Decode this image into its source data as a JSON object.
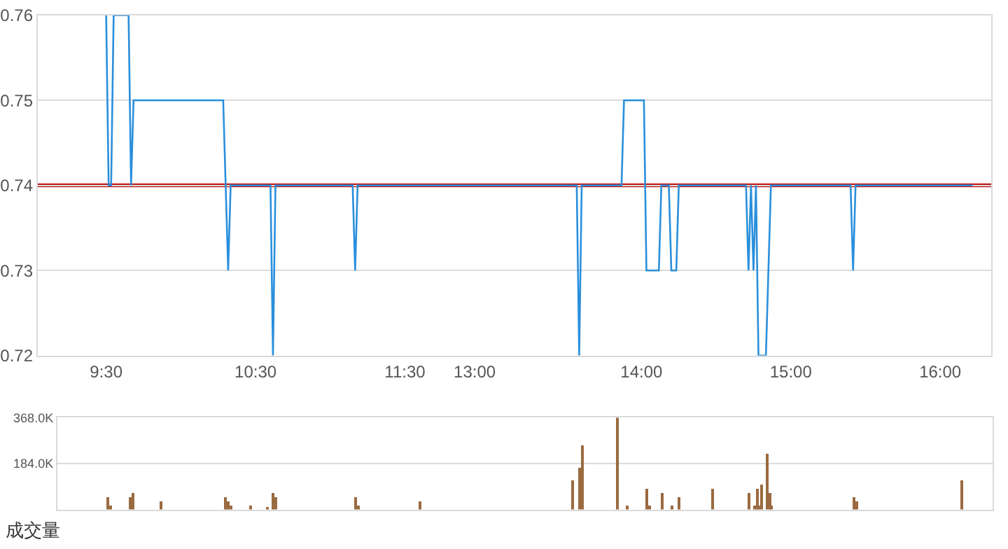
{
  "chart_data": [
    {
      "type": "line",
      "categories": [
        null,
        null,
        null,
        null,
        null,
        null,
        null,
        null,
        null,
        null,
        null,
        null,
        null,
        null,
        null,
        null,
        null,
        null,
        null,
        null,
        null,
        null,
        null,
        null,
        null,
        null,
        null,
        "9:30",
        null,
        null,
        null,
        null,
        null,
        null,
        null,
        null,
        null,
        null,
        null,
        null,
        null,
        null,
        null,
        null,
        null,
        null,
        null,
        null,
        null,
        null,
        null,
        null,
        null,
        null,
        null,
        null,
        null,
        null,
        null,
        null,
        null,
        null,
        null,
        null,
        null,
        null,
        null,
        null,
        null,
        null,
        null,
        null,
        null,
        null,
        null,
        null,
        null,
        null,
        null,
        null,
        null,
        null,
        null,
        null,
        null,
        null,
        null,
        "10:30",
        null,
        null,
        null,
        null,
        null,
        null,
        null,
        null,
        null,
        null,
        null,
        null,
        null,
        null,
        null,
        null,
        null,
        null,
        null,
        null,
        null,
        null,
        null,
        null,
        null,
        null,
        null,
        null,
        null,
        null,
        null,
        null,
        null,
        null,
        null,
        null,
        null,
        null,
        null,
        null,
        null,
        null,
        null,
        null,
        null,
        null,
        null,
        null,
        null,
        null,
        null,
        null,
        null,
        null,
        null,
        null,
        null,
        null,
        null,
        "11:30",
        null,
        null,
        null,
        null,
        null,
        null,
        null,
        null,
        null,
        null,
        null,
        null,
        null,
        null,
        null,
        null,
        null,
        null,
        null,
        null,
        null,
        null,
        null,
        null,
        null,
        null,
        null,
        "13:00",
        null,
        null,
        null,
        null,
        null,
        null,
        null,
        null,
        null,
        null,
        null,
        null,
        null,
        null,
        null,
        null,
        null,
        null,
        null,
        null,
        null,
        null,
        null,
        null,
        null,
        null,
        null,
        null,
        null,
        null,
        null,
        null,
        null,
        null,
        null,
        null,
        null,
        null,
        null,
        null,
        null,
        null,
        null,
        null,
        null,
        null,
        null,
        null,
        null,
        null,
        null,
        null,
        null,
        null,
        null,
        null,
        null,
        null,
        null,
        null,
        null,
        null,
        null,
        null,
        null,
        null,
        "14:00",
        null,
        null,
        null,
        null,
        null,
        null,
        null,
        null,
        null,
        null,
        null,
        null,
        null,
        null,
        null,
        null,
        null,
        null,
        null,
        null,
        null,
        null,
        null,
        null,
        null,
        null,
        null,
        null,
        null,
        null,
        null,
        null,
        null,
        null,
        null,
        null,
        null,
        null,
        null,
        null,
        null,
        null,
        null,
        null,
        null,
        null,
        null,
        null,
        null,
        null,
        null,
        null,
        null,
        null,
        null,
        null,
        null,
        null,
        null,
        "15:00",
        null,
        null,
        null,
        null,
        null,
        null,
        null,
        null,
        null,
        null,
        null,
        null,
        null,
        null,
        null,
        null,
        null,
        null,
        null,
        null,
        null,
        null,
        null,
        null,
        null,
        null,
        null,
        null,
        null,
        null,
        null,
        null,
        null,
        null,
        null,
        null,
        null,
        null,
        null,
        null,
        null,
        null,
        null,
        null,
        null,
        null,
        null,
        null,
        null,
        null,
        null,
        null,
        null,
        null,
        null,
        null,
        null,
        null,
        null,
        "16:00",
        null,
        null,
        null,
        null,
        null,
        null,
        null,
        null,
        null,
        null,
        null,
        null,
        null,
        null,
        null,
        null,
        null,
        null,
        null,
        null
      ],
      "series": [
        {
          "color": "#2a8fdc",
          "values": [
            null,
            null,
            null,
            null,
            null,
            null,
            null,
            null,
            null,
            null,
            null,
            null,
            null,
            null,
            null,
            null,
            null,
            null,
            null,
            null,
            null,
            null,
            null,
            null,
            null,
            null,
            null,
            0.76,
            0.74,
            0.74,
            0.76,
            0.76,
            0.76,
            0.76,
            0.76,
            0.76,
            0.76,
            0.74,
            0.75,
            0.75,
            0.75,
            0.75,
            0.75,
            0.75,
            0.75,
            0.75,
            0.75,
            0.75,
            0.75,
            0.75,
            0.75,
            0.75,
            0.75,
            0.75,
            0.75,
            0.75,
            0.75,
            0.75,
            0.75,
            0.75,
            0.75,
            0.75,
            0.75,
            0.75,
            0.75,
            0.75,
            0.75,
            0.75,
            0.75,
            0.75,
            0.75,
            0.75,
            0.75,
            0.75,
            0.75,
            0.74,
            0.73,
            0.74,
            0.74,
            0.74,
            0.74,
            0.74,
            0.74,
            0.74,
            0.74,
            0.74,
            0.74,
            0.74,
            0.74,
            0.74,
            0.74,
            0.74,
            0.74,
            0.74,
            0.72,
            0.74,
            0.74,
            0.74,
            0.74,
            0.74,
            0.74,
            0.74,
            0.74,
            0.74,
            0.74,
            0.74,
            0.74,
            0.74,
            0.74,
            0.74,
            0.74,
            0.74,
            0.74,
            0.74,
            0.74,
            0.74,
            0.74,
            0.74,
            0.74,
            0.74,
            0.74,
            0.74,
            0.74,
            0.74,
            0.74,
            0.74,
            0.74,
            0.73,
            0.74,
            0.74,
            0.74,
            0.74,
            0.74,
            0.74,
            0.74,
            0.74,
            0.74,
            0.74,
            0.74,
            0.74,
            0.74,
            0.74,
            0.74,
            0.74,
            0.74,
            0.74,
            0.74,
            0.74,
            0.74,
            0.74,
            0.74,
            0.74,
            0.74,
            0.74,
            0.74,
            0.74,
            0.74,
            0.74,
            0.74,
            0.74,
            0.74,
            0.74,
            0.74,
            0.74,
            0.74,
            0.74,
            0.74,
            0.74,
            0.74,
            0.74,
            0.74,
            0.74,
            0.74,
            0.74,
            0.74,
            0.74,
            0.74,
            0.74,
            0.74,
            0.74,
            0.74,
            0.74,
            0.74,
            0.74,
            0.74,
            0.74,
            0.74,
            0.74,
            0.74,
            0.74,
            0.74,
            0.74,
            0.74,
            0.74,
            0.74,
            0.74,
            0.74,
            0.74,
            0.74,
            0.74,
            0.74,
            0.74,
            0.74,
            0.74,
            0.74,
            0.74,
            0.74,
            0.74,
            0.74,
            0.74,
            0.74,
            0.74,
            0.74,
            0.74,
            0.74,
            0.74,
            0.74,
            0.72,
            0.74,
            0.74,
            0.74,
            0.74,
            0.74,
            0.74,
            0.74,
            0.74,
            0.74,
            0.74,
            0.74,
            0.74,
            0.74,
            0.74,
            0.74,
            0.74,
            0.74,
            0.75,
            0.75,
            0.75,
            0.75,
            0.75,
            0.75,
            0.75,
            0.75,
            0.75,
            0.73,
            0.73,
            0.73,
            0.73,
            0.73,
            0.73,
            0.74,
            0.74,
            0.74,
            0.74,
            0.73,
            0.73,
            0.73,
            0.74,
            0.74,
            0.74,
            0.74,
            0.74,
            0.74,
            0.74,
            0.74,
            0.74,
            0.74,
            0.74,
            0.74,
            0.74,
            0.74,
            0.74,
            0.74,
            0.74,
            0.74,
            0.74,
            0.74,
            0.74,
            0.74,
            0.74,
            0.74,
            0.74,
            0.74,
            0.74,
            0.74,
            0.73,
            0.74,
            0.73,
            0.74,
            0.72,
            0.72,
            0.72,
            0.72,
            0.73,
            0.74,
            0.74,
            0.74,
            0.74,
            0.74,
            0.74,
            0.74,
            0.74,
            0.74,
            0.74,
            0.74,
            0.74,
            0.74,
            0.74,
            0.74,
            0.74,
            0.74,
            0.74,
            0.74,
            0.74,
            0.74,
            0.74,
            0.74,
            0.74,
            0.74,
            0.74,
            0.74,
            0.74,
            0.74,
            0.74,
            0.74,
            0.74,
            0.74,
            0.73,
            0.74,
            0.74,
            0.74,
            0.74,
            0.74,
            0.74,
            0.74,
            0.74,
            0.74,
            0.74,
            0.74,
            0.74,
            0.74,
            0.74,
            0.74,
            0.74,
            0.74,
            0.74,
            0.74,
            0.74,
            0.74,
            0.74,
            0.74,
            0.74,
            0.74,
            0.74,
            0.74,
            0.74,
            0.74,
            0.74,
            0.74,
            0.74,
            0.74,
            0.74,
            0.74,
            0.74,
            0.74,
            0.74,
            0.74,
            0.74,
            0.74,
            0.74,
            0.74,
            0.74,
            0.74,
            0.74,
            0.74,
            0.74,
            null,
            null,
            null,
            null,
            null,
            null,
            null
          ]
        }
      ],
      "ylim": [
        0.72,
        0.76
      ],
      "yticks": [
        0.72,
        0.73,
        0.74,
        0.75,
        0.76
      ],
      "ref_lines": [
        {
          "axis": "y",
          "value": 0.74,
          "color": "#c01010"
        }
      ],
      "grid": "y",
      "marker": "none",
      "line_style": "solid"
    },
    {
      "type": "bar",
      "xlabel": "成交量",
      "categories": [
        null,
        null,
        null,
        null,
        null,
        null,
        null,
        null,
        null,
        null,
        null,
        null,
        null,
        null,
        null,
        null,
        null,
        null,
        null,
        null,
        null,
        null,
        null,
        null,
        null,
        null,
        null,
        null,
        null,
        null,
        null,
        null,
        null,
        null,
        null,
        null,
        null,
        null,
        null,
        null,
        null,
        null,
        null,
        null,
        null,
        null,
        null,
        null,
        null,
        null,
        null,
        null,
        null,
        null,
        null,
        null,
        null,
        null,
        null,
        null,
        null,
        null,
        null,
        null,
        null,
        null,
        null,
        null,
        null,
        null,
        null,
        null,
        null,
        null,
        null,
        null,
        null,
        null,
        null,
        null,
        null,
        null,
        null,
        null,
        null,
        null,
        null,
        null,
        null,
        null,
        null,
        null,
        null,
        null,
        null,
        null,
        null,
        null,
        null,
        null,
        null,
        null,
        null,
        null,
        null,
        null,
        null,
        null,
        null,
        null,
        null,
        null,
        null,
        null,
        null,
        null,
        null,
        null,
        null,
        null,
        null,
        null,
        null,
        null,
        null,
        null,
        null,
        null,
        null,
        null,
        null,
        null,
        null,
        null,
        null,
        null,
        null,
        null,
        null,
        null,
        null,
        null,
        null,
        null,
        null,
        null,
        null,
        null,
        null,
        null,
        null,
        null,
        null,
        null,
        null,
        null,
        null,
        null,
        null,
        null,
        null,
        null,
        null,
        null,
        null,
        null,
        null,
        null,
        null,
        null,
        null,
        null,
        null,
        null,
        null,
        null,
        null,
        null,
        null,
        null,
        null,
        null,
        null,
        null,
        null,
        null,
        null,
        null,
        null,
        null,
        null,
        null,
        null,
        null,
        null,
        null,
        null,
        null,
        null,
        null,
        null,
        null,
        null,
        null,
        null,
        null,
        null,
        null,
        null,
        null,
        null,
        null,
        null,
        null,
        null,
        null,
        null,
        null,
        null,
        null,
        null,
        null,
        null,
        null,
        null,
        null,
        null,
        null,
        null,
        null,
        null,
        null,
        null,
        null,
        null,
        null,
        null,
        null,
        null,
        null,
        null,
        null,
        null,
        null,
        null,
        null,
        null,
        null,
        null,
        null,
        null,
        null,
        null,
        null,
        null,
        null,
        null,
        null,
        null,
        null,
        null,
        null,
        null,
        null,
        null,
        null,
        null,
        null,
        null,
        null,
        null,
        null,
        null,
        null,
        null,
        null,
        null,
        null,
        null,
        null,
        null,
        null,
        null,
        null,
        null,
        null,
        null,
        null,
        null,
        null,
        null,
        null,
        null,
        null,
        null,
        null,
        null,
        null,
        null,
        null,
        null,
        null,
        null,
        null,
        null,
        null,
        null,
        null,
        null,
        null,
        null,
        null,
        null,
        null,
        null,
        null,
        null,
        null,
        null,
        null,
        null,
        null,
        null,
        null,
        null,
        null,
        null,
        null,
        null,
        null,
        null,
        null,
        null,
        null,
        null,
        null,
        null,
        null,
        null,
        null,
        null,
        null,
        null,
        null,
        null,
        null,
        null,
        null,
        null,
        null,
        null,
        null,
        null,
        null,
        null,
        null,
        null,
        null,
        null,
        null,
        null,
        null,
        null,
        null,
        null,
        null,
        null,
        null,
        null,
        null,
        null,
        null,
        null,
        null,
        null
      ],
      "series": [
        {
          "color": "#9a6a40",
          "values": [
            null,
            null,
            null,
            null,
            null,
            null,
            null,
            null,
            null,
            null,
            null,
            null,
            null,
            null,
            null,
            null,
            null,
            null,
            null,
            null,
            49000,
            16000,
            null,
            null,
            null,
            null,
            null,
            null,
            null,
            49000,
            65000,
            null,
            null,
            null,
            null,
            null,
            null,
            null,
            null,
            null,
            null,
            32000,
            null,
            null,
            null,
            null,
            null,
            null,
            null,
            null,
            null,
            null,
            null,
            null,
            null,
            null,
            null,
            null,
            null,
            null,
            null,
            null,
            null,
            null,
            null,
            null,
            null,
            49000,
            32000,
            16000,
            null,
            null,
            null,
            null,
            null,
            null,
            null,
            16000,
            null,
            null,
            null,
            null,
            null,
            null,
            5000,
            null,
            65000,
            49000,
            null,
            null,
            null,
            null,
            null,
            null,
            null,
            null,
            null,
            null,
            null,
            null,
            null,
            null,
            null,
            null,
            null,
            null,
            null,
            null,
            null,
            null,
            null,
            null,
            null,
            null,
            null,
            null,
            null,
            null,
            null,
            49000,
            16000,
            null,
            null,
            null,
            null,
            null,
            null,
            null,
            null,
            null,
            null,
            null,
            null,
            null,
            null,
            null,
            null,
            null,
            null,
            null,
            null,
            null,
            null,
            null,
            null,
            32000,
            null,
            null,
            null,
            null,
            null,
            null,
            null,
            null,
            null,
            null,
            null,
            null,
            null,
            null,
            null,
            null,
            null,
            null,
            null,
            null,
            null,
            null,
            null,
            null,
            null,
            null,
            null,
            null,
            null,
            null,
            null,
            null,
            null,
            null,
            null,
            null,
            null,
            null,
            null,
            null,
            null,
            null,
            null,
            null,
            null,
            null,
            null,
            null,
            null,
            null,
            null,
            null,
            null,
            null,
            null,
            null,
            null,
            null,
            null,
            null,
            115000,
            null,
            null,
            164000,
            257000,
            null,
            null,
            null,
            null,
            null,
            null,
            null,
            null,
            null,
            null,
            null,
            null,
            null,
            368000,
            null,
            null,
            null,
            16000,
            null,
            null,
            null,
            null,
            null,
            null,
            null,
            82000,
            16000,
            null,
            null,
            null,
            null,
            66000,
            null,
            null,
            null,
            16000,
            null,
            null,
            49000,
            null,
            null,
            null,
            null,
            null,
            null,
            null,
            null,
            null,
            null,
            null,
            null,
            82000,
            null,
            null,
            null,
            null,
            null,
            null,
            null,
            null,
            null,
            null,
            null,
            null,
            null,
            null,
            66000,
            null,
            16000,
            82000,
            16000,
            98000,
            null,
            224000,
            66000,
            16000,
            null,
            null,
            null,
            null,
            null,
            null,
            null,
            null,
            null,
            null,
            null,
            null,
            null,
            null,
            null,
            null,
            null,
            null,
            null,
            null,
            null,
            null,
            null,
            null,
            null,
            null,
            null,
            null,
            null,
            null,
            null,
            null,
            49000,
            33000,
            null,
            null,
            null,
            null,
            null,
            null,
            null,
            null,
            null,
            null,
            null,
            null,
            null,
            null,
            null,
            null,
            null,
            null,
            null,
            null,
            null,
            null,
            null,
            null,
            null,
            null,
            null,
            null,
            null,
            null,
            null,
            null,
            null,
            null,
            null,
            null,
            null,
            null,
            null,
            null,
            null,
            115000,
            null,
            null,
            null,
            null,
            null,
            null,
            null,
            null,
            null,
            null,
            null,
            null
          ]
        }
      ],
      "ylim": [
        0,
        368000
      ],
      "yticks": [
        {
          "value": 0,
          "label": null
        },
        {
          "value": 184000,
          "label": "184.0K"
        },
        {
          "value": 368000,
          "label": "368.0K"
        }
      ],
      "grid": "y",
      "tick_labels": "y"
    }
  ]
}
